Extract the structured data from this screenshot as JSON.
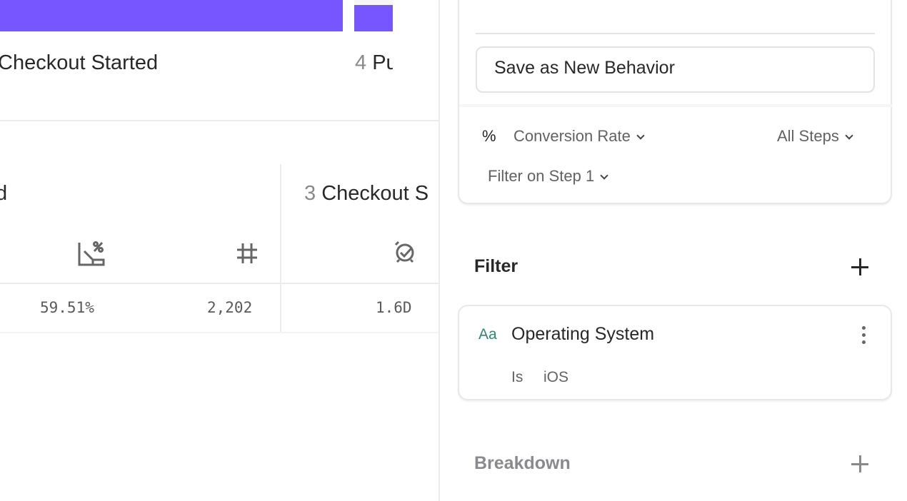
{
  "funnel": {
    "bar_color": "#7856ff",
    "step3_label": "Checkout Started",
    "step4_number": "4",
    "step4_label": "Pu"
  },
  "table": {
    "prev_col_header": "d",
    "step3_number": "3",
    "step3_header": "Checkout S",
    "icons": [
      "conversion-rate-icon",
      "count-hash-icon",
      "time-to-convert-icon"
    ],
    "values": [
      "59.51%",
      "2,202",
      "1.6D"
    ]
  },
  "panel": {
    "save_button": "Save as New Behavior",
    "metric_symbol": "%",
    "metric_label": "Conversion Rate",
    "steps_label": "All Steps",
    "filter_step_label": "Filter on Step 1",
    "filter_title": "Filter",
    "filter_item": {
      "type_icon": "Aa",
      "property": "Operating System",
      "operator": "Is",
      "value": "iOS"
    },
    "breakdown_title": "Breakdown"
  }
}
